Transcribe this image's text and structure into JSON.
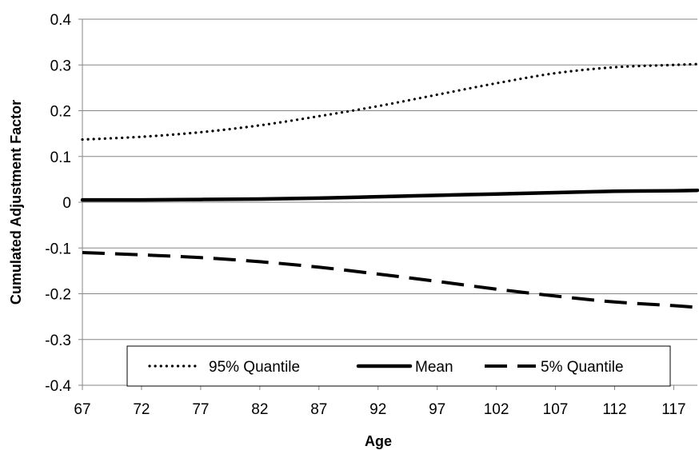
{
  "chart_data": {
    "type": "line",
    "title": "",
    "xlabel": "Age",
    "ylabel": "Cumulated Adjustment Factor",
    "xlim": [
      67,
      119
    ],
    "ylim": [
      -0.4,
      0.4
    ],
    "x_ticks": [
      67,
      72,
      77,
      82,
      87,
      92,
      97,
      102,
      107,
      112,
      117
    ],
    "y_ticks": [
      -0.4,
      -0.3,
      -0.2,
      -0.1,
      0,
      0.1,
      0.2,
      0.3,
      0.4
    ],
    "y_tick_labels": [
      "-0.4",
      "-0.3",
      "-0.2",
      "-0.1",
      "0",
      "0.1",
      "0.2",
      "0.3",
      "0.4"
    ],
    "x_tick_labels": [
      "67",
      "72",
      "77",
      "82",
      "87",
      "92",
      "97",
      "102",
      "107",
      "112",
      "117"
    ],
    "grid": "horizontal",
    "legend_position": "bottom",
    "x": [
      67,
      72,
      77,
      82,
      87,
      92,
      97,
      102,
      107,
      112,
      117,
      119
    ],
    "series": [
      {
        "name": "95% Quantile",
        "style": "dotted",
        "color": "#000000",
        "values": [
          0.137,
          0.143,
          0.153,
          0.168,
          0.188,
          0.21,
          0.235,
          0.26,
          0.282,
          0.295,
          0.3,
          0.302
        ]
      },
      {
        "name": "Mean",
        "style": "solid",
        "color": "#000000",
        "values": [
          0.005,
          0.005,
          0.006,
          0.007,
          0.009,
          0.012,
          0.015,
          0.018,
          0.021,
          0.024,
          0.025,
          0.026
        ]
      },
      {
        "name": "5% Quantile",
        "style": "dashed",
        "color": "#000000",
        "values": [
          -0.11,
          -0.115,
          -0.121,
          -0.13,
          -0.142,
          -0.157,
          -0.173,
          -0.19,
          -0.205,
          -0.218,
          -0.226,
          -0.23
        ]
      }
    ]
  }
}
